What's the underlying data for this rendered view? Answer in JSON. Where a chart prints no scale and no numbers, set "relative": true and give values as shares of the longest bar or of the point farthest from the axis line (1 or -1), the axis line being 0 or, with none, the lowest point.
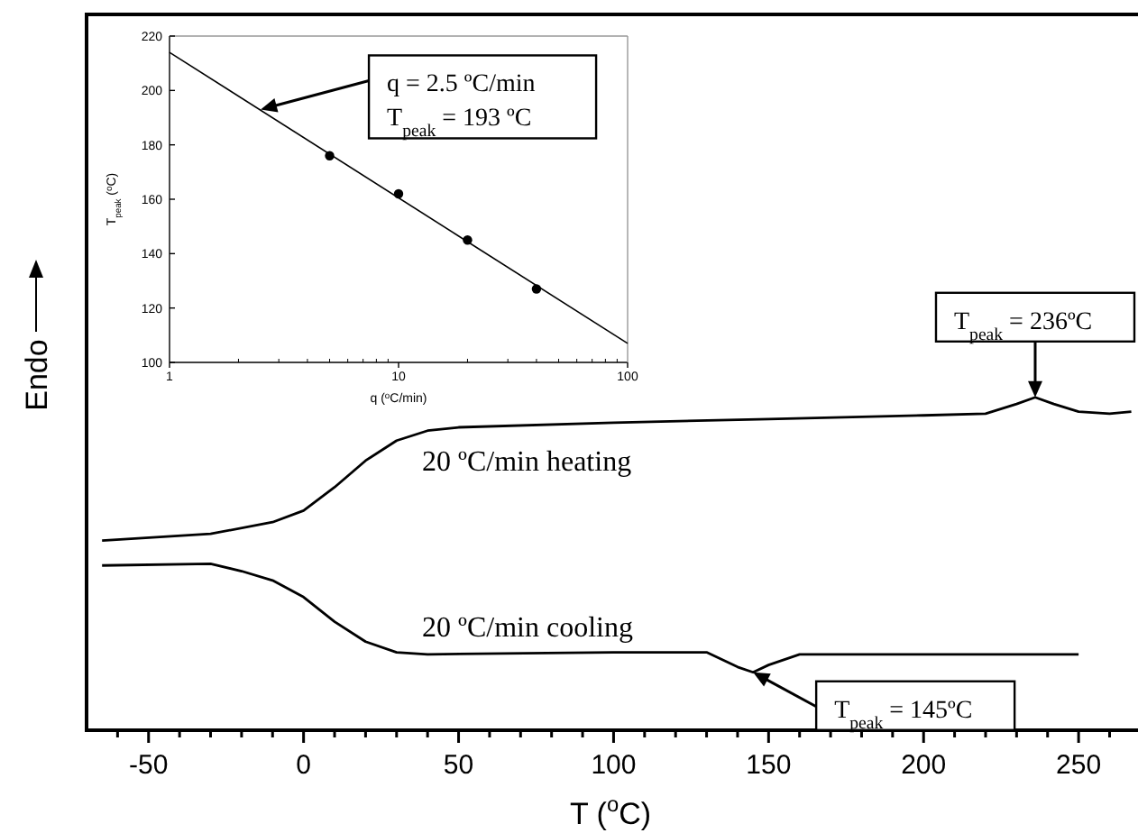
{
  "chart_data": [
    {
      "type": "line",
      "relative": true,
      "xlabel": "T ($^{o}$C)",
      "ylabel": "Endo",
      "xlim": [
        -70,
        268
      ],
      "xticks": [
        {
          "value": -60,
          "label": null
        },
        -50,
        {
          "value": -40,
          "label": null
        },
        {
          "value": -30,
          "label": null
        },
        {
          "value": -20,
          "label": null
        },
        {
          "value": -10,
          "label": null
        },
        0,
        {
          "value": 10,
          "label": null
        },
        {
          "value": 20,
          "label": null
        },
        {
          "value": 30,
          "label": null
        },
        {
          "value": 40,
          "label": null
        },
        50,
        {
          "value": 60,
          "label": null
        },
        {
          "value": 70,
          "label": null
        },
        {
          "value": 80,
          "label": null
        },
        {
          "value": 90,
          "label": null
        },
        100,
        {
          "value": 110,
          "label": null
        },
        {
          "value": 120,
          "label": null
        },
        {
          "value": 130,
          "label": null
        },
        {
          "value": 140,
          "label": null
        },
        150,
        {
          "value": 160,
          "label": null
        },
        {
          "value": 170,
          "label": null
        },
        {
          "value": 180,
          "label": null
        },
        {
          "value": 190,
          "label": null
        },
        200,
        {
          "value": 210,
          "label": null
        },
        {
          "value": 220,
          "label": null
        },
        {
          "value": 230,
          "label": null
        },
        {
          "value": 240,
          "label": null
        },
        250,
        {
          "value": 260,
          "label": null
        }
      ],
      "tick_labels": "x",
      "line_style": "solid",
      "series": [
        {
          "name": "20 ºC/min heating",
          "color": "#000000",
          "x": [
            -65,
            -30,
            -10,
            0,
            10,
            20,
            30,
            40,
            50,
            100,
            150,
            200,
            220,
            230,
            236,
            242,
            250,
            260,
            267
          ],
          "values": [
            0.57,
            0.59,
            0.625,
            0.66,
            0.73,
            0.81,
            0.87,
            0.9,
            0.91,
            0.924,
            0.935,
            0.946,
            0.951,
            0.98,
            1,
            0.98,
            0.957,
            0.951,
            0.957
          ]
        },
        {
          "name": "20 ºC/min cooling",
          "color": "#000000",
          "x": [
            -65,
            -30,
            -20,
            -10,
            0,
            10,
            20,
            30,
            40,
            100,
            130,
            140,
            145,
            150,
            160,
            200,
            250
          ],
          "values": [
            0.495,
            0.5,
            0.478,
            0.45,
            0.4,
            0.326,
            0.266,
            0.234,
            0.228,
            0.234,
            0.234,
            0.19,
            0.174,
            0.196,
            0.228,
            0.228,
            0.228
          ]
        }
      ],
      "annotations": [
        {
          "text": "T$_{peak}$ = 236ºC",
          "x": 236,
          "y": 1
        },
        {
          "text": "T$_{peak}$ = 145ºC",
          "x": 145,
          "y": 0.174
        }
      ]
    },
    {
      "type": "scatter",
      "xlabel": "q ($^{o}$C/min)",
      "ylabel": "T$_{peak}$ ($^{o}$C)",
      "log": "x",
      "xlim": [
        1,
        100
      ],
      "xticks": [
        1,
        10,
        100
      ],
      "ylim": [
        100,
        220
      ],
      "yticks": [
        100,
        120,
        140,
        160,
        180,
        200,
        220
      ],
      "series": [
        {
          "color": "#000000",
          "marker": "circle",
          "x": [
            5,
            10,
            20,
            40
          ],
          "values": [
            176,
            162,
            145,
            127
          ]
        },
        {
          "type": "line",
          "color": "#000000",
          "x": [
            1,
            100
          ],
          "values": [
            214,
            107
          ]
        }
      ],
      "annotations": [
        {
          "text": "q = 2.5 ºC/min\nT$_{peak}$ = 193 ºC",
          "x": 2.5,
          "y": 193
        }
      ]
    }
  ]
}
